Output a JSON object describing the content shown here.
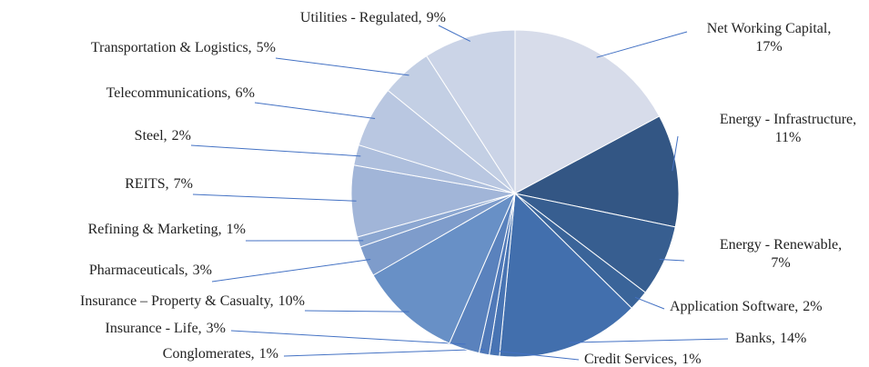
{
  "chart_data": {
    "type": "pie",
    "categories": [
      "Net Working Capital",
      "Energy - Infrastructure",
      "Energy - Renewable",
      "Application Software",
      "Banks",
      "Credit Services",
      "Conglomerates",
      "Insurance - Life",
      "Insurance – Property & Casualty",
      "Pharmaceuticals",
      "Refining & Marketing",
      "REITS",
      "Steel",
      "Telecommunications",
      "Transportation & Logistics",
      "Utilities - Regulated"
    ],
    "values": [
      17,
      11,
      7,
      2,
      14,
      1,
      1,
      3,
      10,
      3,
      1,
      7,
      2,
      6,
      5,
      9
    ],
    "value_labels": [
      "17%",
      "11%",
      "7%",
      "2%",
      "14%",
      "1%",
      "1%",
      "3%",
      "10%",
      "3%",
      "1%",
      "7%",
      "2%",
      "6%",
      "5%",
      "9%"
    ],
    "label_separator": ",",
    "colors": [
      "#d7dcea",
      "#335684",
      "#375e90",
      "#3a6499",
      "#426fad",
      "#4874b3",
      "#5079b8",
      "#5a82bd",
      "#6890c6",
      "#7e9ccb",
      "#8ca7d1",
      "#a1b5d8",
      "#aebfdd",
      "#b9c7e1",
      "#c3cfe4",
      "#cbd4e7"
    ]
  }
}
